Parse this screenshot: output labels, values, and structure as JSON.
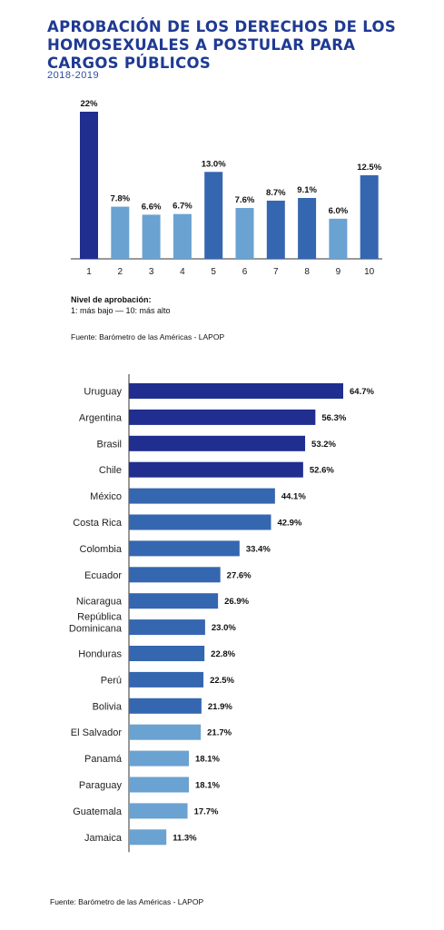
{
  "title_lines": [
    "APROBACIÓN DE LOS DERECHOS DE LOS",
    "HOMOSEXUALES A POSTULAR PARA",
    "CARGOS PÚBLICOS"
  ],
  "subtitle": "2018-2019",
  "legend": {
    "heading": "Nivel de aprobación:",
    "text": "1: más bajo — 10: más alto"
  },
  "source_top": "Fuente: Barómetro de las Américas - LAPOP",
  "source_bottom": "Fuente: Barómetro de las Américas - LAPOP",
  "colors": {
    "dark": "#1f2e8f",
    "mid": "#3566b0",
    "light": "#6aa2d1",
    "title": "#1f3a93"
  },
  "chart_data": [
    {
      "type": "bar",
      "orientation": "vertical",
      "categories": [
        "1",
        "2",
        "3",
        "4",
        "5",
        "6",
        "7",
        "8",
        "9",
        "10"
      ],
      "values": [
        22,
        7.8,
        6.6,
        6.7,
        13.0,
        7.6,
        8.7,
        9.1,
        6.0,
        12.5
      ],
      "value_labels": [
        "22%",
        "7.8%",
        "6.6%",
        "6.7%",
        "13.0%",
        "7.6%",
        "8.7%",
        "9.1%",
        "6.0%",
        "12.5%"
      ],
      "bar_colors": [
        "#1f2e8f",
        "#6aa2d1",
        "#6aa2d1",
        "#6aa2d1",
        "#3566b0",
        "#6aa2d1",
        "#3566b0",
        "#3566b0",
        "#6aa2d1",
        "#3566b0"
      ],
      "ylim": [
        0,
        22
      ]
    },
    {
      "type": "bar",
      "orientation": "horizontal",
      "categories": [
        "Uruguay",
        "Argentina",
        "Brasil",
        "Chile",
        "México",
        "Costa Rica",
        "Colombia",
        "Ecuador",
        "Nicaragua",
        "República Dominicana",
        "Honduras",
        "Perú",
        "Bolivia",
        "El Salvador",
        "Panamá",
        "Paraguay",
        "Guatemala",
        "Jamaica"
      ],
      "values": [
        64.7,
        56.3,
        53.2,
        52.6,
        44.1,
        42.9,
        33.4,
        27.6,
        26.9,
        23.0,
        22.8,
        22.5,
        21.9,
        21.7,
        18.1,
        18.1,
        17.7,
        11.3
      ],
      "value_labels": [
        "64.7%",
        "56.3%",
        "53.2%",
        "52.6%",
        "44.1%",
        "42.9%",
        "33.4%",
        "27.6%",
        "26.9%",
        "23.0%",
        "22.8%",
        "22.5%",
        "21.9%",
        "21.7%",
        "18.1%",
        "18.1%",
        "17.7%",
        "11.3%"
      ],
      "bar_colors": [
        "#1f2e8f",
        "#1f2e8f",
        "#1f2e8f",
        "#1f2e8f",
        "#3566b0",
        "#3566b0",
        "#3566b0",
        "#3566b0",
        "#3566b0",
        "#3566b0",
        "#3566b0",
        "#3566b0",
        "#3566b0",
        "#6aa2d1",
        "#6aa2d1",
        "#6aa2d1",
        "#6aa2d1",
        "#6aa2d1"
      ],
      "xlim": [
        0,
        64.7
      ]
    }
  ]
}
